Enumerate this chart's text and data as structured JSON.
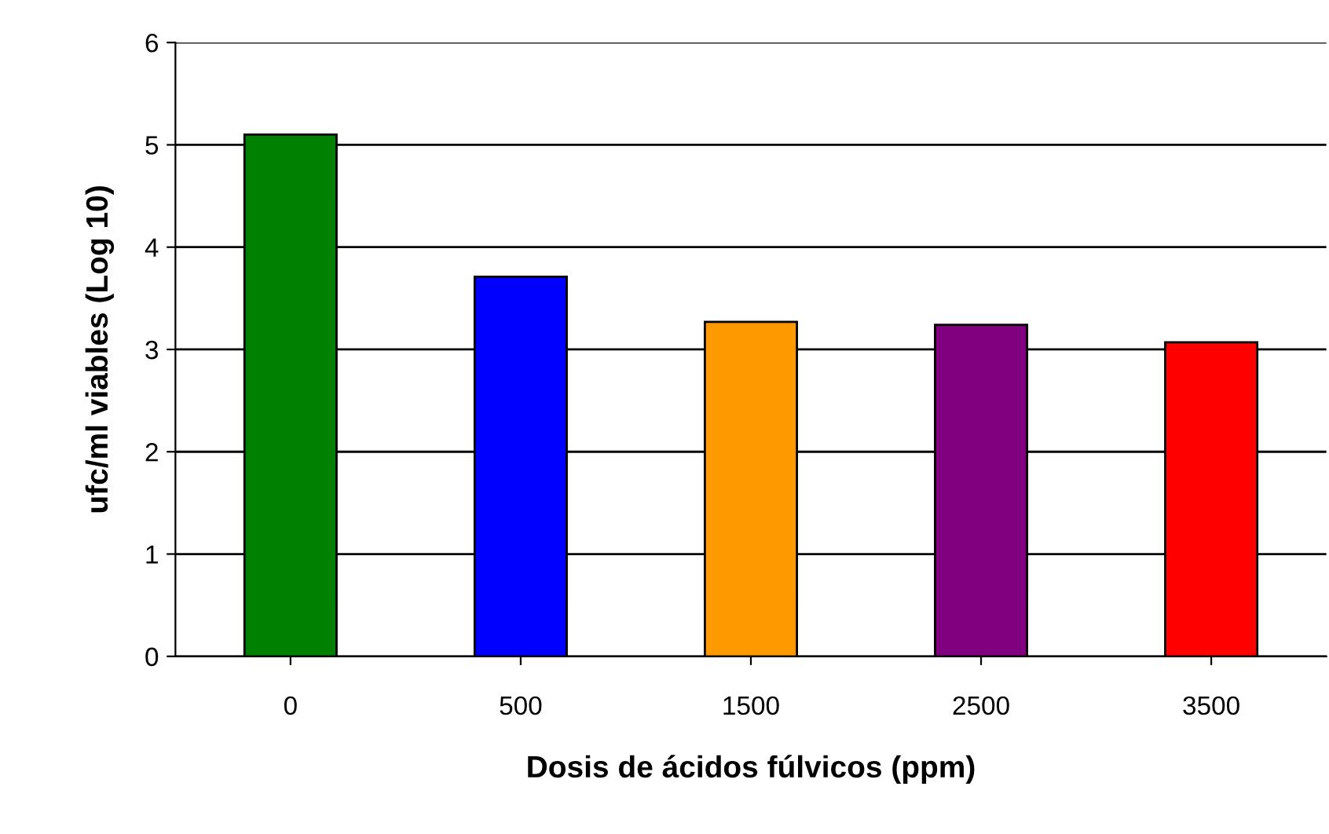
{
  "chart_data": {
    "type": "bar",
    "xlabel": "Dosis de ácidos fúlvicos (ppm)",
    "ylabel": "ufc/ml viables (Log 10)",
    "categories": [
      "0",
      "500",
      "1500",
      "2500",
      "3500"
    ],
    "values": [
      5.1,
      3.71,
      3.27,
      3.24,
      3.07
    ],
    "colors": [
      "#008000",
      "#0000ff",
      "#ff9900",
      "#800080",
      "#ff0000"
    ],
    "ylim": [
      0,
      6
    ],
    "yticks": [
      0,
      1,
      2,
      3,
      4,
      5,
      6
    ],
    "grid": "y",
    "legend": false
  }
}
